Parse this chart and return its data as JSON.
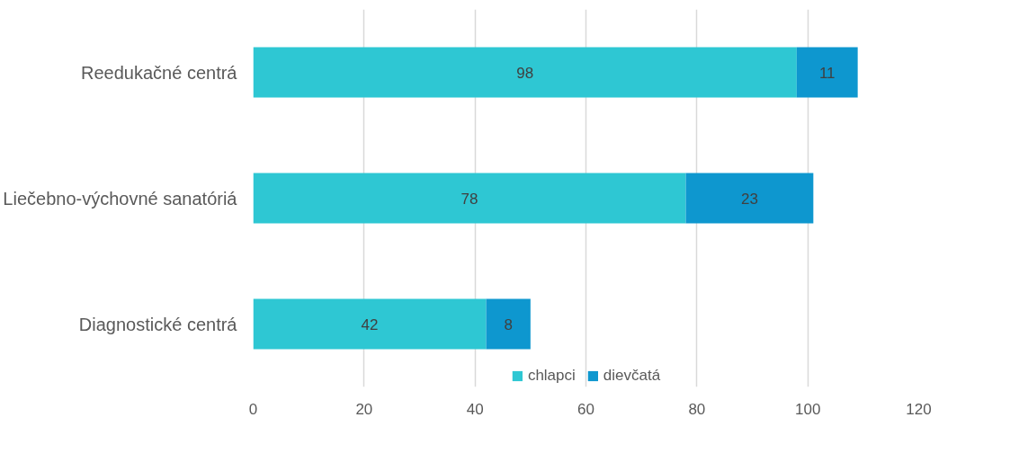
{
  "chart_data": {
    "type": "bar",
    "orientation": "horizontal",
    "stacked": true,
    "categories": [
      "Reedukačné centrá",
      "Liečebno-výchovné sanatóriá",
      "Diagnostické centrá"
    ],
    "series": [
      {
        "name": "chlapci",
        "color": "#2ec7d3",
        "values": [
          98,
          78,
          42
        ]
      },
      {
        "name": "dievčatá",
        "color": "#0e97cf",
        "values": [
          11,
          23,
          8
        ]
      }
    ],
    "xlim": [
      0,
      120
    ],
    "xticks": [
      0,
      20,
      40,
      60,
      80,
      100,
      120
    ],
    "grid": "x",
    "legend": "bottom",
    "data_labels": true
  }
}
